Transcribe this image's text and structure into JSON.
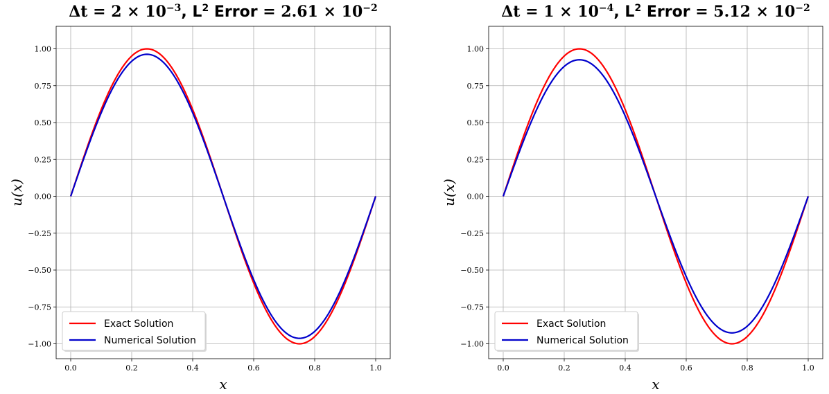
{
  "colors": {
    "exact": "#ff0000",
    "numerical": "#0000cc",
    "grid": "#b0b0b0"
  },
  "chart_data": [
    {
      "type": "line",
      "title": "Δt = 2 × 10⁻³, L² Error = 2.61 × 10⁻²",
      "title_parts": {
        "dt_base": "Δt = 2 × 10",
        "dt_exp": "−3",
        "comma": ",",
        "err_label": "L",
        "err_sup": "2",
        "err_word": " Error",
        "err_base": "= 2.61 × 10",
        "err_exp": "−2"
      },
      "xlabel": "x",
      "ylabel": "u(x)",
      "xlim": [
        0.0,
        1.0
      ],
      "ylim": [
        -1.0,
        1.0
      ],
      "xticks": [
        "0.0",
        "0.2",
        "0.4",
        "0.6",
        "0.8",
        "1.0"
      ],
      "yticks": [
        "1.00",
        "0.75",
        "0.50",
        "0.25",
        "0.00",
        "−0.25",
        "−0.50",
        "−0.75",
        "−1.00"
      ],
      "grid": true,
      "legend": "lower-left",
      "series": [
        {
          "name": "Exact Solution",
          "color": "#ff0000",
          "function": "sin(2πx)",
          "amplitude": 1.0
        },
        {
          "name": "Numerical Solution",
          "color": "#0000cc",
          "function": "sin(2πx)",
          "amplitude": 0.963
        }
      ]
    },
    {
      "type": "line",
      "title": "Δt = 1 × 10⁻⁴, L² Error = 5.12 × 10⁻²",
      "title_parts": {
        "dt_base": "Δt = 1 × 10",
        "dt_exp": "−4",
        "comma": ",",
        "err_label": "L",
        "err_sup": "2",
        "err_word": " Error",
        "err_base": "= 5.12 × 10",
        "err_exp": "−2"
      },
      "xlabel": "x",
      "ylabel": "u(x)",
      "xlim": [
        0.0,
        1.0
      ],
      "ylim": [
        -1.0,
        1.0
      ],
      "xticks": [
        "0.0",
        "0.2",
        "0.4",
        "0.6",
        "0.8",
        "1.0"
      ],
      "yticks": [
        "1.00",
        "0.75",
        "0.50",
        "0.25",
        "0.00",
        "−0.25",
        "−0.50",
        "−0.75",
        "−1.00"
      ],
      "grid": true,
      "legend": "lower-left",
      "series": [
        {
          "name": "Exact Solution",
          "color": "#ff0000",
          "function": "sin(2πx)",
          "amplitude": 1.0
        },
        {
          "name": "Numerical Solution",
          "color": "#0000cc",
          "function": "sin(2πx)",
          "amplitude": 0.926
        }
      ]
    }
  ]
}
